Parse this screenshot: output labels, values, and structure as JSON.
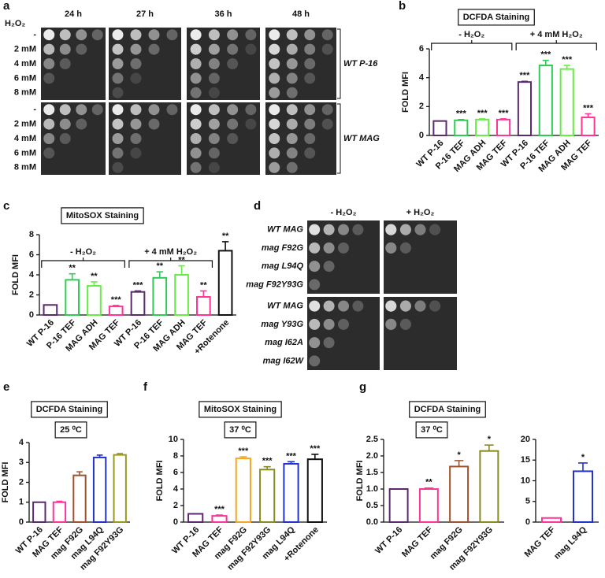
{
  "panel_labels": [
    "a",
    "b",
    "c",
    "d",
    "e",
    "f",
    "g"
  ],
  "spot_assay_a": {
    "row_header": "H₂O₂",
    "columns": [
      "24 h",
      "27 h",
      "36 h",
      "48 h"
    ],
    "blocks": [
      {
        "strain": "WT P-16",
        "rows": [
          "-",
          "2 mM",
          "4 mM",
          "6 mM",
          "8 mM"
        ]
      },
      {
        "strain": "WT MAG",
        "rows": [
          "-",
          "2 mM",
          "4 mM",
          "6 mM",
          "8 mM"
        ]
      }
    ]
  },
  "spot_assay_d": {
    "columns": [
      "- H₂O₂",
      "+ H₂O₂"
    ],
    "rows": [
      "WT MAG",
      "mag F92G",
      "mag L94Q",
      "mag F92Y93G",
      "WT MAG",
      "mag Y93G",
      "mag I62A",
      "mag I62W"
    ]
  },
  "chart_data": [
    {
      "type": "bar",
      "title": "DCFDA Staining",
      "ylabel": "FOLD MFI",
      "groups": [
        {
          "label": "- H₂O₂",
          "count": 4
        },
        {
          "label": "+ 4 mM H₂O₂",
          "count": 4
        }
      ],
      "categories": [
        "WT P-16",
        "P-16 TEF",
        "MAG ADH",
        "MAG TEF",
        "WT P-16",
        "P-16 TEF",
        "MAG ADH",
        "MAG TEF"
      ],
      "values": [
        1.0,
        1.05,
        1.1,
        1.1,
        3.7,
        4.85,
        4.6,
        1.25
      ],
      "errors": [
        0,
        0.05,
        0.05,
        0.05,
        0.05,
        0.35,
        0.25,
        0.25
      ],
      "annotations": [
        null,
        "***",
        "***",
        "***",
        "***",
        "***",
        "***",
        "***"
      ],
      "colors": [
        "#5b2a6e",
        "#2ecc55",
        "#66ee44",
        "#ff3399",
        "#5b2a6e",
        "#2ecc55",
        "#66ee44",
        "#ff3399"
      ],
      "ylim": [
        0,
        6
      ],
      "yticks": [
        0,
        2,
        4,
        6
      ]
    },
    {
      "type": "bar",
      "title": "MitoSOX Staining",
      "ylabel": "FOLD MFI",
      "groups": [
        {
          "label": "- H₂O₂",
          "count": 4
        },
        {
          "label": "+ 4 mM H₂O₂",
          "count": 4
        }
      ],
      "categories": [
        "WT P-16",
        "P-16 TEF",
        "MAG ADH",
        "MAG TEF",
        "WT P-16",
        "P-16 TEF",
        "MAG ADH",
        "MAG TEF",
        "+Rotenone"
      ],
      "values": [
        1.0,
        3.5,
        2.9,
        0.85,
        2.3,
        3.7,
        4.0,
        1.8,
        6.4
      ],
      "errors": [
        0,
        0.6,
        0.4,
        0.1,
        0.1,
        0.6,
        0.9,
        0.6,
        0.9
      ],
      "annotations": [
        null,
        "**",
        "**",
        "***",
        "***",
        "**",
        "**",
        "**",
        "**"
      ],
      "colors": [
        "#5b2a6e",
        "#2ecc55",
        "#66ee44",
        "#ff3399",
        "#5b2a6e",
        "#2ecc55",
        "#66ee44",
        "#ff3399",
        "#111111"
      ],
      "ylim": [
        0,
        8
      ],
      "yticks": [
        0,
        2,
        4,
        6,
        8
      ]
    },
    {
      "type": "bar",
      "title": "DCFDA Staining",
      "subtitle": "25 ⁰C",
      "ylabel": "FOLD MFI",
      "categories": [
        "WT P-16",
        "MAG TEF",
        "mag F92G",
        "mag L94Q",
        "mag F92Y93G"
      ],
      "values": [
        1.0,
        1.0,
        2.35,
        3.25,
        3.38
      ],
      "errors": [
        0,
        0.05,
        0.18,
        0.12,
        0.07
      ],
      "colors": [
        "#5b2a6e",
        "#ff3399",
        "#a0522d",
        "#2233cc",
        "#999922"
      ],
      "ylim": [
        0,
        4
      ],
      "yticks": [
        0,
        1,
        2,
        3,
        4
      ]
    },
    {
      "type": "bar",
      "title": "MitoSOX Staining",
      "subtitle": "37 ⁰C",
      "ylabel": "FOLD MFI",
      "categories": [
        "WT P-16",
        "MAG TEF",
        "mag F92G",
        "mag F92Y93G",
        "mag L94Q",
        "+Rotenone"
      ],
      "values": [
        1.0,
        0.75,
        7.7,
        6.35,
        7.05,
        7.6
      ],
      "errors": [
        0,
        0.1,
        0.2,
        0.35,
        0.25,
        0.6
      ],
      "annotations": [
        null,
        "***",
        "***",
        "***",
        "***",
        "***"
      ],
      "colors": [
        "#5b2a6e",
        "#ff3399",
        "#f5a623",
        "#8a8a22",
        "#2233cc",
        "#111111"
      ],
      "ylim": [
        0,
        10
      ],
      "yticks": [
        0,
        2,
        4,
        6,
        8,
        10
      ]
    },
    {
      "type": "bar",
      "title": "DCFDA Staining",
      "subtitle": "37 ⁰C",
      "ylabel": "FOLD MFI",
      "categories": [
        "WT P-16",
        "MAG TEF",
        "mag F92G",
        "mag F92Y93G"
      ],
      "values": [
        1.0,
        1.0,
        1.68,
        2.15
      ],
      "errors": [
        0,
        0.03,
        0.18,
        0.18
      ],
      "annotations": [
        null,
        "**",
        "*",
        "*"
      ],
      "colors": [
        "#5b2a6e",
        "#ff3399",
        "#a0522d",
        "#8a8a22"
      ],
      "ylim": [
        0,
        2.5
      ],
      "yticks": [
        {
          "value": 0,
          "label": "0.0"
        },
        0.5,
        {
          "value": 1,
          "label": "1.0"
        },
        1.5,
        {
          "value": 2,
          "label": "2.0"
        },
        2.5
      ]
    },
    {
      "type": "bar",
      "categories": [
        "MAG TEF",
        "mag L94Q"
      ],
      "values": [
        1.0,
        12.3
      ],
      "errors": [
        0,
        2.0
      ],
      "annotations": [
        null,
        "*"
      ],
      "colors": [
        "#ff3399",
        "#2233cc"
      ],
      "ylim": [
        0,
        20
      ],
      "yticks": [
        0,
        5,
        10,
        15,
        20
      ]
    }
  ]
}
